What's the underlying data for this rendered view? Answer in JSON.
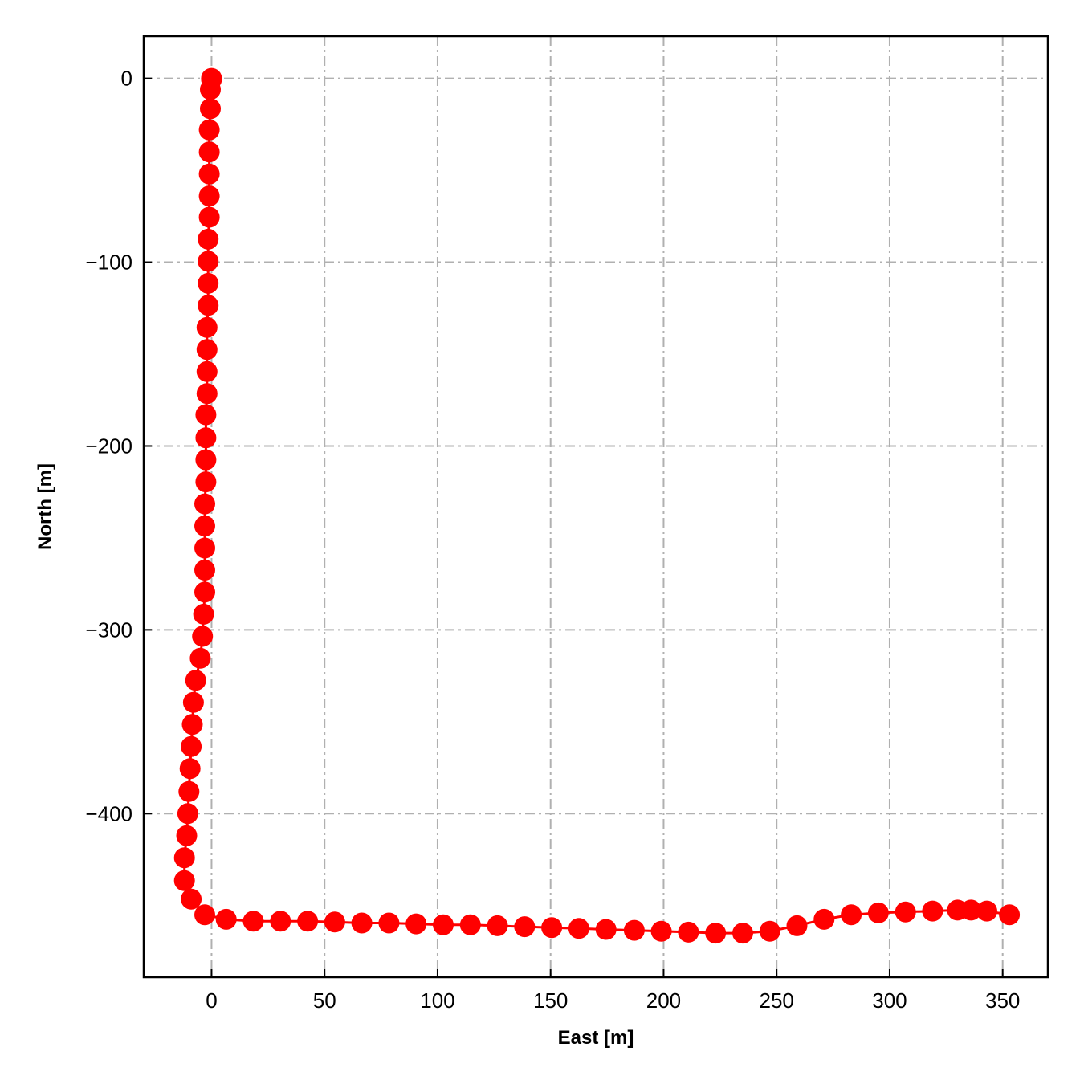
{
  "chart_data": {
    "type": "line",
    "xlabel": "East [m]",
    "ylabel": "North [m]",
    "xlim": [
      -30,
      370
    ],
    "ylim": [
      -489,
      23
    ],
    "xticks": [
      0,
      50,
      100,
      150,
      200,
      250,
      300,
      350
    ],
    "yticks": [
      0,
      -100,
      -200,
      -300,
      -400
    ],
    "xtick_labels": [
      "0",
      "50",
      "100",
      "150",
      "200",
      "250",
      "300",
      "350"
    ],
    "ytick_labels": [
      "0",
      "−100",
      "−200",
      "−300",
      "−400"
    ],
    "grid": true,
    "series": [
      {
        "color": "#ff0000",
        "marker": "circle",
        "points": [
          [
            0,
            0
          ],
          [
            0,
            -0.5
          ],
          [
            -0.5,
            -6
          ],
          [
            -0.5,
            -16.5
          ],
          [
            -1,
            -28
          ],
          [
            -1,
            -40
          ],
          [
            -1,
            -52
          ],
          [
            -1,
            -64
          ],
          [
            -1,
            -75.5
          ],
          [
            -1.5,
            -87.5
          ],
          [
            -1.5,
            -99.5
          ],
          [
            -1.5,
            -111.5
          ],
          [
            -1.5,
            -123.5
          ],
          [
            -2,
            -135.5
          ],
          [
            -2,
            -147.5
          ],
          [
            -2,
            -159.5
          ],
          [
            -2,
            -171.5
          ],
          [
            -2.5,
            -183
          ],
          [
            -2.5,
            -195.5
          ],
          [
            -2.5,
            -207.5
          ],
          [
            -2.5,
            -219.5
          ],
          [
            -3,
            -231.5
          ],
          [
            -3,
            -243.5
          ],
          [
            -3,
            -255.5
          ],
          [
            -3,
            -267.5
          ],
          [
            -3,
            -279.5
          ],
          [
            -3.5,
            -291.5
          ],
          [
            -4,
            -303.5
          ],
          [
            -5,
            -315.5
          ],
          [
            -7,
            -327.5
          ],
          [
            -8,
            -339.5
          ],
          [
            -8.5,
            -351.5
          ],
          [
            -9,
            -363.5
          ],
          [
            -9.5,
            -375.5
          ],
          [
            -10,
            -388
          ],
          [
            -10.5,
            -400
          ],
          [
            -11,
            -412
          ],
          [
            -12,
            -424
          ],
          [
            -12,
            -436.5
          ],
          [
            -9,
            -446.5
          ],
          [
            -3,
            -455
          ],
          [
            6.5,
            -457.5
          ],
          [
            18.5,
            -458.5
          ],
          [
            30.5,
            -458.5
          ],
          [
            42.5,
            -458.5
          ],
          [
            54.5,
            -459
          ],
          [
            66.5,
            -459.5
          ],
          [
            78.5,
            -459.5
          ],
          [
            90.5,
            -460
          ],
          [
            102.5,
            -460.5
          ],
          [
            114.5,
            -460.5
          ],
          [
            126.5,
            -461
          ],
          [
            138.5,
            -461.5
          ],
          [
            150.5,
            -462
          ],
          [
            162.5,
            -462.5
          ],
          [
            174.5,
            -463
          ],
          [
            187,
            -463.5
          ],
          [
            199,
            -464
          ],
          [
            211,
            -464.5
          ],
          [
            223,
            -465
          ],
          [
            235,
            -465
          ],
          [
            247,
            -464
          ],
          [
            259,
            -461
          ],
          [
            271,
            -457.5
          ],
          [
            283,
            -455
          ],
          [
            295,
            -454
          ],
          [
            307,
            -453.5
          ],
          [
            319,
            -453
          ],
          [
            330,
            -452.5
          ],
          [
            336,
            -452.5
          ],
          [
            343,
            -453
          ],
          [
            353,
            -455
          ]
        ]
      }
    ]
  }
}
